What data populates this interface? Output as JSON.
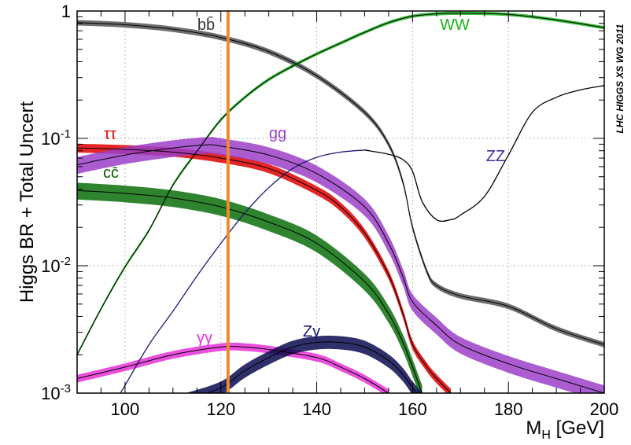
{
  "chart_data": {
    "type": "line",
    "title": "",
    "xlabel": "M",
    "xlabel_sub": "H",
    "xlabel_unit": " [GeV]",
    "ylabel": "Higgs BR + Total Uncert",
    "xlim": [
      90,
      200
    ],
    "ylim": [
      0.001,
      1
    ],
    "yscale": "log",
    "grid": true,
    "watermark": "LHC HIGGS XS WG 2011",
    "xticks": [
      100,
      120,
      140,
      160,
      180,
      200
    ],
    "xtick_labels": [
      "100",
      "120",
      "140",
      "160",
      "180",
      "200"
    ],
    "yticks": [
      {
        "value": 0.001,
        "base": "10",
        "exp": "-3"
      },
      {
        "value": 0.01,
        "base": "10",
        "exp": "-2"
      },
      {
        "value": 0.1,
        "base": "10",
        "exp": "-1"
      },
      {
        "value": 1,
        "base": "1",
        "exp": ""
      }
    ],
    "marker_line": {
      "x": 121.5,
      "color": "#f08a2c"
    },
    "series": [
      {
        "name": "bb̄",
        "color": "#000000",
        "band": "#555555",
        "x": [
          90,
          100,
          110,
          120,
          130,
          140,
          150,
          155,
          158,
          160,
          163,
          165,
          170,
          180,
          190,
          200
        ],
        "y": [
          0.81,
          0.78,
          0.72,
          0.62,
          0.48,
          0.31,
          0.16,
          0.09,
          0.045,
          0.02,
          0.009,
          0.007,
          0.0058,
          0.0048,
          0.0032,
          0.0024
        ],
        "band_frac": 0.05
      },
      {
        "name": "WW",
        "color": "#19b519",
        "band": "#19b519",
        "x": [
          90,
          95,
          100,
          105,
          110,
          115,
          120,
          125,
          130,
          135,
          140,
          145,
          150,
          155,
          160,
          165,
          170,
          180,
          190,
          200
        ],
        "y": [
          0.002,
          0.0046,
          0.0098,
          0.019,
          0.043,
          0.079,
          0.14,
          0.21,
          0.29,
          0.37,
          0.46,
          0.56,
          0.68,
          0.81,
          0.91,
          0.95,
          0.96,
          0.94,
          0.85,
          0.74
        ],
        "band_frac": 0.03
      },
      {
        "name": "ZZ",
        "color": "#000000",
        "band": "#000000",
        "x": [
          150,
          155,
          158,
          160,
          162,
          165,
          168,
          170,
          175,
          180,
          185,
          190,
          195,
          200
        ],
        "y": [
          0.081,
          0.075,
          0.068,
          0.055,
          0.032,
          0.023,
          0.023,
          0.025,
          0.035,
          0.074,
          0.16,
          0.21,
          0.24,
          0.26
        ],
        "band_frac": 0.0
      },
      {
        "name": "ZZ-low",
        "color": "#191970",
        "band": "#191970",
        "x": [
          99,
          100,
          105,
          110,
          115,
          120,
          125,
          130,
          135,
          140,
          145,
          150
        ],
        "y": [
          0.001,
          0.00115,
          0.0024,
          0.0044,
          0.0083,
          0.015,
          0.026,
          0.041,
          0.058,
          0.071,
          0.078,
          0.081
        ],
        "band_frac": 0.0
      },
      {
        "name": "ττ",
        "color": "#e00000",
        "band": "#e00000",
        "x": [
          90,
          100,
          110,
          120,
          130,
          140,
          145,
          150,
          155,
          158,
          160,
          163,
          165,
          168
        ],
        "y": [
          0.084,
          0.082,
          0.078,
          0.07,
          0.058,
          0.039,
          0.029,
          0.018,
          0.0085,
          0.0042,
          0.0024,
          0.0016,
          0.0013,
          0.001
        ],
        "band_frac": 0.08
      },
      {
        "name": "gg",
        "color": "#9b40c8",
        "band": "#9b40c8",
        "x": [
          90,
          100,
          110,
          117,
          120,
          130,
          140,
          150,
          155,
          158,
          160,
          165,
          170,
          180,
          190,
          200
        ],
        "y": [
          0.062,
          0.074,
          0.084,
          0.089,
          0.087,
          0.074,
          0.053,
          0.029,
          0.015,
          0.0082,
          0.0052,
          0.0034,
          0.0024,
          0.0017,
          0.0013,
          0.001
        ],
        "band_frac": 0.15
      },
      {
        "name": "cc̄",
        "color": "#0a5a0a",
        "band": "#0a6e0a",
        "x": [
          90,
          100,
          110,
          120,
          130,
          140,
          150,
          155,
          158,
          160,
          162
        ],
        "y": [
          0.039,
          0.037,
          0.034,
          0.029,
          0.022,
          0.015,
          0.0075,
          0.0042,
          0.0025,
          0.0016,
          0.001
        ],
        "band_frac": 0.15
      },
      {
        "name": "γγ",
        "color": "#e830d8",
        "band": "#e830d8",
        "x": [
          90,
          100,
          110,
          120,
          125,
          130,
          140,
          145,
          150,
          155
        ],
        "y": [
          0.0013,
          0.0016,
          0.002,
          0.0023,
          0.0023,
          0.0022,
          0.0019,
          0.0016,
          0.0013,
          0.001
        ],
        "band_frac": 0.07
      },
      {
        "name": "Zγ",
        "color": "#191970",
        "band": "#0a0a50",
        "x": [
          113,
          120,
          125,
          130,
          135,
          140,
          145,
          150,
          155,
          158,
          160,
          162
        ],
        "y": [
          0.0009,
          0.0011,
          0.0015,
          0.0019,
          0.0023,
          0.0025,
          0.0025,
          0.0023,
          0.0018,
          0.0014,
          0.0011,
          0.0009
        ],
        "band_frac": 0.12
      }
    ],
    "labels": [
      {
        "text": "bb̄",
        "series": "bb̄",
        "color": "#333333"
      },
      {
        "text": "WW",
        "series": "WW",
        "color": "#19b519"
      },
      {
        "text": "ττ",
        "series": "ττ",
        "color": "#e00000"
      },
      {
        "text": "gg",
        "series": "gg",
        "color": "#9b40c8"
      },
      {
        "text": "cc̄",
        "series": "cc̄",
        "color": "#0a5a0a"
      },
      {
        "text": "ZZ",
        "series": "ZZ",
        "color": "#333399"
      },
      {
        "text": "γγ",
        "series": "γγ",
        "color": "#e830d8"
      },
      {
        "text": "Zγ",
        "series": "Zγ",
        "color": "#191970"
      }
    ]
  }
}
